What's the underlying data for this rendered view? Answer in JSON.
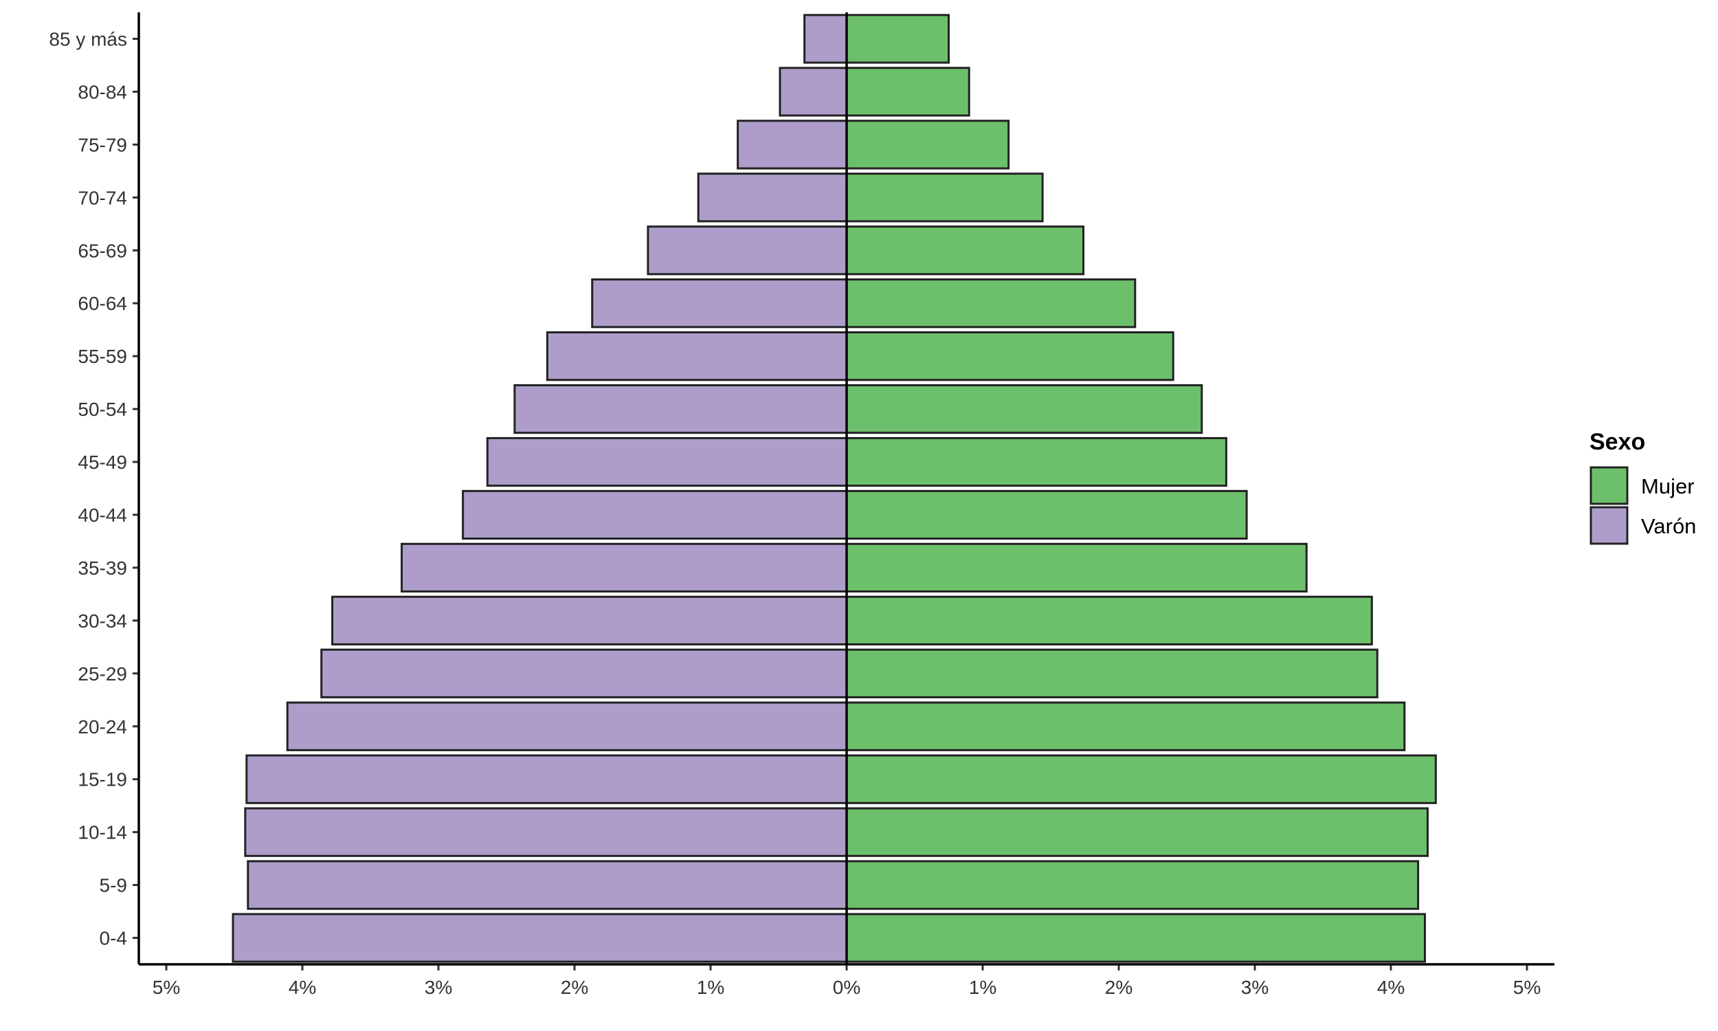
{
  "chart_data": {
    "type": "bar",
    "orientation": "horizontal",
    "layout": "population-pyramid",
    "categories": [
      "0-4",
      "5-9",
      "10-14",
      "15-19",
      "20-24",
      "25-29",
      "30-34",
      "35-39",
      "40-44",
      "45-49",
      "50-54",
      "55-59",
      "60-64",
      "65-69",
      "70-74",
      "75-79",
      "80-84",
      "85 y más"
    ],
    "series": [
      {
        "name": "Mujer",
        "side": "right",
        "color": "#6DC06B",
        "values": [
          4.25,
          4.2,
          4.27,
          4.33,
          4.1,
          3.9,
          3.86,
          3.38,
          2.94,
          2.79,
          2.61,
          2.4,
          2.12,
          1.74,
          1.44,
          1.19,
          0.9,
          0.75
        ]
      },
      {
        "name": "Varón",
        "side": "left",
        "color": "#AE9DCB",
        "values": [
          4.51,
          4.4,
          4.42,
          4.41,
          4.11,
          3.86,
          3.78,
          3.27,
          2.82,
          2.64,
          2.44,
          2.2,
          1.87,
          1.46,
          1.09,
          0.8,
          0.49,
          0.31
        ]
      }
    ],
    "xlim": [
      -5,
      5
    ],
    "xticks": [
      -5,
      -4,
      -3,
      -2,
      -1,
      0,
      1,
      2,
      3,
      4,
      5
    ],
    "xtick_labels": [
      "5%",
      "4%",
      "3%",
      "2%",
      "1%",
      "0%",
      "1%",
      "2%",
      "3%",
      "4%",
      "5%"
    ],
    "legend": {
      "title": "Sexo",
      "position": "right",
      "entries": [
        "Mujer",
        "Varón"
      ]
    },
    "grid": false,
    "bar_outline": "#222222"
  }
}
